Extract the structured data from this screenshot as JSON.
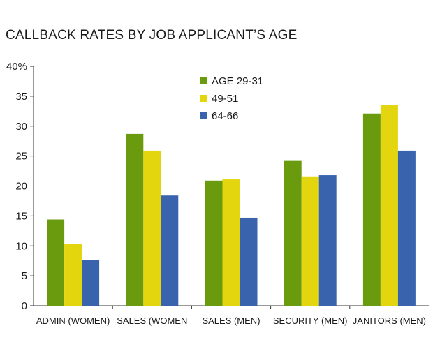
{
  "chart_data": {
    "type": "bar",
    "title": "CALLBACK RATES BY JOB APPLICANT’S AGE",
    "xlabel": "",
    "ylabel": "",
    "categories": [
      "ADMIN (WOMEN)",
      "SALES (WOMEN",
      "SALES (MEN)",
      "SECURITY (MEN)",
      "JANITORS (MEN)"
    ],
    "series": [
      {
        "name": "AGE 29-31",
        "color": "#6a9a0e",
        "values": [
          14.4,
          28.7,
          20.9,
          24.3,
          32.1
        ]
      },
      {
        "name": "49-51",
        "color": "#e3d60e",
        "values": [
          10.3,
          25.9,
          21.1,
          21.6,
          33.5
        ]
      },
      {
        "name": "64-66",
        "color": "#3a63ad",
        "values": [
          7.6,
          18.4,
          14.7,
          21.8,
          25.9
        ]
      }
    ],
    "ylim": [
      0,
      40
    ],
    "yticks": [
      0,
      5,
      10,
      15,
      20,
      25,
      30,
      35,
      40
    ],
    "ytick_labels": [
      "0",
      "5",
      "10",
      "15",
      "20",
      "25",
      "30",
      "35",
      "40%"
    ],
    "grid": false,
    "legend_position": "top-center"
  }
}
